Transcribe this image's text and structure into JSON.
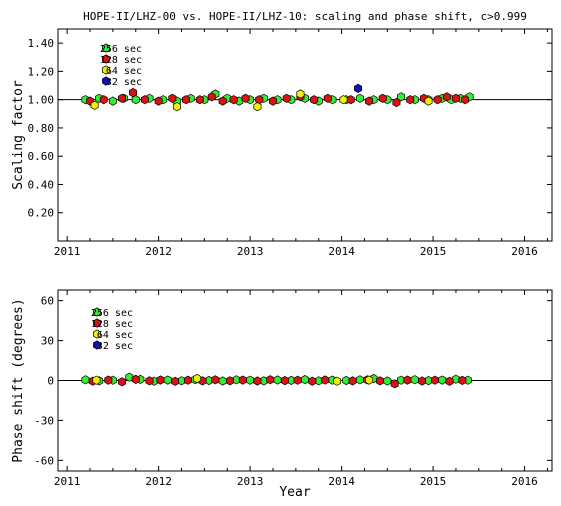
{
  "colors": {
    "s256": "#33ee33",
    "s128": "#dd1111",
    "s64": "#f2f200",
    "s32": "#1111bb",
    "outline": "#000000"
  },
  "chart_data": [
    {
      "type": "scatter",
      "title": "HOPE-II/LHZ-00 vs. HOPE-II/LHZ-10: scaling and phase shift, c>0.999",
      "xlabel": "",
      "ylabel": "Scaling factor",
      "xlim": [
        2010.9,
        2016.3
      ],
      "ylim": [
        0.0,
        1.5
      ],
      "x_ticks": [
        2011,
        2012,
        2013,
        2014,
        2015,
        2016
      ],
      "x_tick_labels": [
        "2011",
        "2012",
        "2013",
        "2014",
        "2015",
        "2016"
      ],
      "y_ticks": [
        0.2,
        0.4,
        0.6,
        0.8,
        1.0,
        1.2,
        1.4
      ],
      "y_tick_labels": [
        "0.20",
        "0.40",
        "0.60",
        "0.80",
        "1.00",
        "1.20",
        "1.40"
      ],
      "reference_line": 1.0,
      "legend_position": "top-left",
      "series": [
        {
          "name": "256 sec",
          "color": "#33ee33",
          "x": [
            2011.2,
            2011.35,
            2011.5,
            2011.62,
            2011.75,
            2011.9,
            2012.05,
            2012.2,
            2012.35,
            2012.5,
            2012.62,
            2012.75,
            2012.88,
            2013.0,
            2013.15,
            2013.3,
            2013.45,
            2013.6,
            2013.75,
            2013.9,
            2014.05,
            2014.2,
            2014.35,
            2014.5,
            2014.65,
            2014.8,
            2014.95,
            2015.1,
            2015.2,
            2015.3,
            2015.4
          ],
          "y": [
            1.0,
            1.01,
            0.99,
            1.01,
            1.0,
            1.01,
            1.0,
            0.99,
            1.01,
            1.0,
            1.04,
            1.01,
            0.99,
            1.0,
            1.01,
            1.0,
            1.0,
            1.01,
            0.99,
            1.0,
            1.0,
            1.01,
            1.0,
            1.0,
            1.02,
            1.0,
            1.0,
            1.01,
            1.0,
            1.01,
            1.02
          ]
        },
        {
          "name": "128 sec",
          "color": "#dd1111",
          "x": [
            2011.25,
            2011.4,
            2011.6,
            2011.72,
            2011.85,
            2012.0,
            2012.15,
            2012.3,
            2012.45,
            2012.58,
            2012.7,
            2012.82,
            2012.95,
            2013.1,
            2013.25,
            2013.4,
            2013.55,
            2013.7,
            2013.85,
            2014.1,
            2014.3,
            2014.45,
            2014.6,
            2014.75,
            2014.9,
            2015.05,
            2015.15,
            2015.25,
            2015.35
          ],
          "y": [
            0.99,
            1.0,
            1.01,
            1.05,
            1.0,
            0.99,
            1.01,
            1.0,
            1.0,
            1.02,
            0.99,
            1.0,
            1.01,
            1.0,
            0.99,
            1.01,
            1.02,
            1.0,
            1.01,
            1.0,
            0.99,
            1.01,
            0.98,
            1.0,
            1.01,
            1.0,
            1.02,
            1.01,
            1.0
          ]
        },
        {
          "name": "64 sec",
          "color": "#f2f200",
          "x": [
            2011.3,
            2012.2,
            2013.08,
            2013.55,
            2014.02,
            2014.95
          ],
          "y": [
            0.96,
            0.95,
            0.95,
            1.04,
            1.0,
            0.99
          ]
        },
        {
          "name": "32 sec",
          "color": "#1111bb",
          "x": [
            2014.18
          ],
          "y": [
            1.08
          ]
        }
      ]
    },
    {
      "type": "scatter",
      "title": "",
      "xlabel": "Year",
      "ylabel": "Phase shift (degrees)",
      "xlim": [
        2010.9,
        2016.3
      ],
      "ylim": [
        -68,
        68
      ],
      "x_ticks": [
        2011,
        2012,
        2013,
        2014,
        2015,
        2016
      ],
      "x_tick_labels": [
        "2011",
        "2012",
        "2013",
        "2014",
        "2015",
        "2016"
      ],
      "y_ticks": [
        -60,
        -30,
        0,
        30,
        60
      ],
      "y_tick_labels": [
        "-60",
        "-30",
        "0",
        "30",
        "60"
      ],
      "reference_line": 0,
      "legend_position": "top-left",
      "series": [
        {
          "name": "256 sec",
          "color": "#33ee33",
          "x": [
            2011.2,
            2011.35,
            2011.5,
            2011.68,
            2011.8,
            2011.95,
            2012.1,
            2012.25,
            2012.4,
            2012.55,
            2012.7,
            2012.85,
            2013.0,
            2013.15,
            2013.3,
            2013.45,
            2013.6,
            2013.75,
            2013.9,
            2014.05,
            2014.2,
            2014.35,
            2014.5,
            2014.65,
            2014.8,
            2014.95,
            2015.1,
            2015.25,
            2015.38
          ],
          "y": [
            0.5,
            -0.3,
            0.2,
            2.5,
            0.8,
            -0.5,
            0.3,
            -0.2,
            0.6,
            0.0,
            -0.4,
            0.5,
            0.2,
            -0.3,
            0.4,
            0.1,
            0.7,
            -0.2,
            0.3,
            0.0,
            0.5,
            1.5,
            -0.4,
            0.2,
            0.6,
            -0.1,
            0.3,
            1.0,
            0.2
          ]
        },
        {
          "name": "128 sec",
          "color": "#dd1111",
          "x": [
            2011.28,
            2011.45,
            2011.6,
            2011.75,
            2011.9,
            2012.02,
            2012.18,
            2012.32,
            2012.48,
            2012.62,
            2012.78,
            2012.92,
            2013.08,
            2013.22,
            2013.38,
            2013.52,
            2013.68,
            2013.82,
            2014.12,
            2014.28,
            2014.42,
            2014.58,
            2014.72,
            2014.88,
            2015.02,
            2015.18,
            2015.32
          ],
          "y": [
            -0.5,
            0.3,
            -1.0,
            0.8,
            -0.2,
            0.4,
            -0.6,
            0.2,
            -0.3,
            0.5,
            -0.2,
            0.3,
            -0.4,
            0.6,
            -0.1,
            0.2,
            -0.5,
            0.4,
            -0.3,
            0.5,
            -0.2,
            -2.5,
            0.3,
            -0.4,
            0.2,
            -0.6,
            0.1
          ]
        },
        {
          "name": "64 sec",
          "color": "#f2f200",
          "x": [
            2011.32,
            2012.42,
            2013.95,
            2014.3
          ],
          "y": [
            0.2,
            1.5,
            -0.5,
            0.3
          ]
        },
        {
          "name": "32 sec",
          "color": "#1111bb",
          "x": [],
          "y": []
        }
      ]
    }
  ]
}
